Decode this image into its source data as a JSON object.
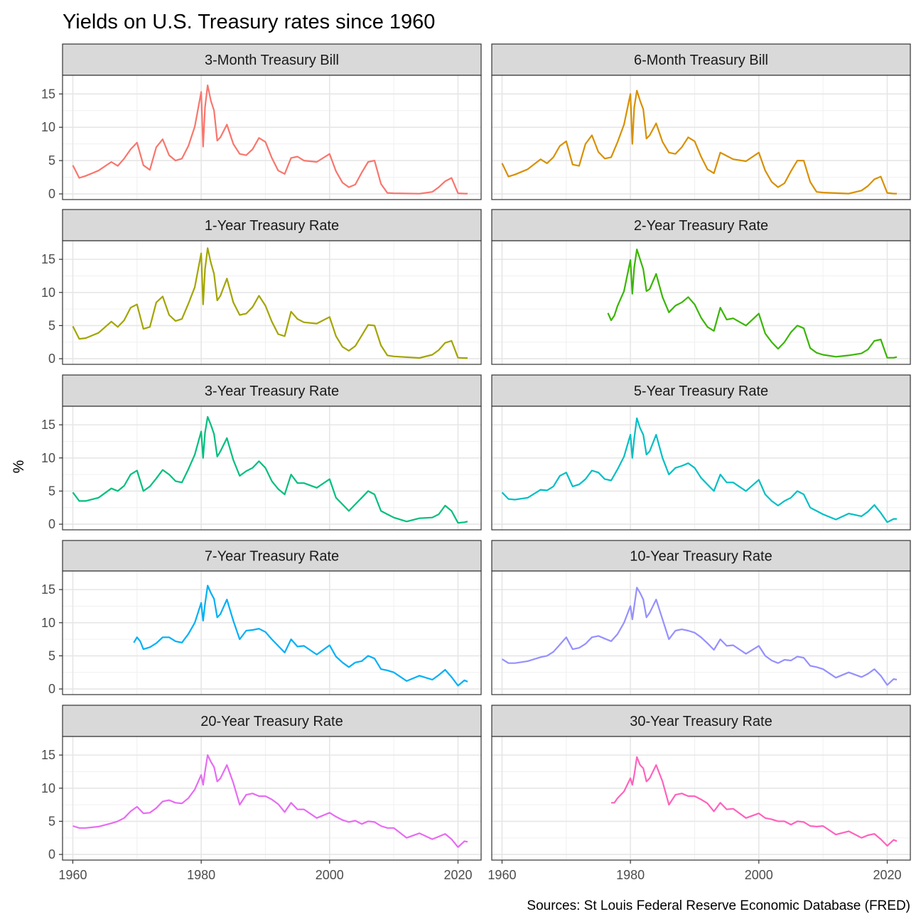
{
  "title": "Yields on U.S. Treasury rates since 1960",
  "caption": "Sources: St Louis Federal Reserve Economic Database (FRED)",
  "chart_data": {
    "type": "line",
    "layout": "faceted small multiples, 5 rows x 2 columns",
    "title": "Yields on U.S. Treasury rates since 1960",
    "xlabel": "",
    "ylabel": "%",
    "xlim": [
      1960,
      2022
    ],
    "ylim": [
      0,
      17
    ],
    "x_ticks": [
      1960,
      1980,
      2000,
      2020
    ],
    "y_ticks": [
      0,
      5,
      10,
      15
    ],
    "grid": true,
    "legend": "none",
    "caption": "Sources: St Louis Federal Reserve Economic Database (FRED)",
    "series": [
      {
        "name": "3-Month Treasury Bill",
        "color": "#F8766D",
        "x": [
          1960,
          1961,
          1962,
          1964,
          1966,
          1967,
          1968,
          1969,
          1970,
          1971,
          1972,
          1973,
          1974,
          1975,
          1976,
          1977,
          1978,
          1979,
          1980,
          1980.3,
          1980.6,
          1981,
          1981.5,
          1982,
          1982.5,
          1983,
          1984,
          1985,
          1986,
          1987,
          1988,
          1989,
          1990,
          1991,
          1992,
          1993,
          1994,
          1995,
          1996,
          1998,
          2000,
          2001,
          2002,
          2003,
          2004,
          2005,
          2006,
          2007,
          2008,
          2009,
          2010,
          2014,
          2016,
          2017,
          2018,
          2019,
          2020,
          2021,
          2021.5
        ],
        "y": [
          4.3,
          2.4,
          2.7,
          3.5,
          4.8,
          4.2,
          5.3,
          6.7,
          7.7,
          4.3,
          3.6,
          7.0,
          8.2,
          5.8,
          5.0,
          5.3,
          7.2,
          10.1,
          15.3,
          7.1,
          13.0,
          16.3,
          14.0,
          12.5,
          8.0,
          8.5,
          10.4,
          7.5,
          6.0,
          5.8,
          6.7,
          8.4,
          7.8,
          5.4,
          3.5,
          3.0,
          5.4,
          5.6,
          5.0,
          4.8,
          6.0,
          3.4,
          1.7,
          1.0,
          1.4,
          3.2,
          4.8,
          5.0,
          1.5,
          0.15,
          0.1,
          0.03,
          0.3,
          1.0,
          1.9,
          2.4,
          0.1,
          0.05,
          0.05
        ]
      },
      {
        "name": "6-Month Treasury Bill",
        "color": "#D89000",
        "x": [
          1960,
          1961,
          1962,
          1964,
          1966,
          1967,
          1968,
          1969,
          1970,
          1971,
          1972,
          1973,
          1974,
          1975,
          1976,
          1977,
          1978,
          1979,
          1980,
          1980.3,
          1980.6,
          1981,
          1981.5,
          1982,
          1982.5,
          1983,
          1984,
          1985,
          1986,
          1987,
          1988,
          1989,
          1990,
          1991,
          1992,
          1993,
          1994,
          1995,
          1996,
          1998,
          2000,
          2001,
          2002,
          2003,
          2004,
          2005,
          2006,
          2007,
          2008,
          2009,
          2010,
          2014,
          2016,
          2017,
          2018,
          2019,
          2020,
          2021,
          2021.5
        ],
        "y": [
          4.6,
          2.6,
          2.9,
          3.7,
          5.2,
          4.6,
          5.5,
          7.2,
          7.9,
          4.4,
          4.2,
          7.5,
          8.8,
          6.3,
          5.3,
          5.5,
          7.8,
          10.4,
          15.0,
          7.5,
          13.0,
          15.5,
          14.0,
          12.7,
          8.3,
          8.8,
          10.6,
          7.8,
          6.2,
          6.0,
          7.0,
          8.5,
          7.9,
          5.6,
          3.7,
          3.1,
          6.2,
          5.7,
          5.2,
          4.9,
          6.2,
          3.5,
          1.8,
          1.0,
          1.6,
          3.4,
          5.0,
          5.0,
          1.8,
          0.3,
          0.2,
          0.05,
          0.5,
          1.2,
          2.2,
          2.6,
          0.15,
          0.05,
          0.05
        ]
      },
      {
        "name": "1-Year Treasury Rate",
        "color": "#A3A500",
        "x": [
          1960,
          1961,
          1962,
          1964,
          1966,
          1967,
          1968,
          1969,
          1970,
          1971,
          1972,
          1973,
          1974,
          1975,
          1976,
          1977,
          1978,
          1979,
          1980,
          1980.3,
          1980.6,
          1981,
          1981.5,
          1982,
          1982.5,
          1983,
          1984,
          1985,
          1986,
          1987,
          1988,
          1989,
          1990,
          1991,
          1992,
          1993,
          1994,
          1995,
          1996,
          1998,
          2000,
          2001,
          2002,
          2003,
          2004,
          2005,
          2006,
          2007,
          2008,
          2009,
          2010,
          2014,
          2016,
          2017,
          2018,
          2019,
          2020,
          2021,
          2021.5
        ],
        "y": [
          4.9,
          3.0,
          3.1,
          3.9,
          5.6,
          4.8,
          5.8,
          7.7,
          8.2,
          4.5,
          4.8,
          8.5,
          9.4,
          6.6,
          5.7,
          6.0,
          8.3,
          10.8,
          15.9,
          8.2,
          13.5,
          16.7,
          14.5,
          12.8,
          8.8,
          9.5,
          12.1,
          8.5,
          6.6,
          6.8,
          7.8,
          9.5,
          8.0,
          5.6,
          3.7,
          3.4,
          7.1,
          6.0,
          5.5,
          5.3,
          6.3,
          3.4,
          1.8,
          1.2,
          1.9,
          3.5,
          5.1,
          5.0,
          2.0,
          0.5,
          0.35,
          0.12,
          0.6,
          1.3,
          2.4,
          2.7,
          0.15,
          0.1,
          0.1
        ]
      },
      {
        "name": "2-Year Treasury Rate",
        "color": "#39B600",
        "x": [
          1976.5,
          1977,
          1977.5,
          1978,
          1979,
          1980,
          1980.3,
          1980.6,
          1981,
          1981.5,
          1982,
          1982.5,
          1983,
          1984,
          1985,
          1986,
          1987,
          1988,
          1989,
          1990,
          1991,
          1992,
          1993,
          1994,
          1995,
          1996,
          1998,
          2000,
          2001,
          2002,
          2003,
          2004,
          2005,
          2006,
          2007,
          2008,
          2009,
          2010,
          2012,
          2014,
          2016,
          2017,
          2018,
          2019,
          2020,
          2021,
          2021.5
        ],
        "y": [
          6.9,
          5.8,
          6.5,
          8.0,
          10.2,
          14.9,
          9.8,
          13.8,
          16.5,
          15.0,
          13.5,
          10.2,
          10.5,
          12.8,
          9.3,
          7.0,
          8.0,
          8.5,
          9.3,
          8.2,
          6.2,
          4.8,
          4.2,
          7.7,
          5.9,
          6.1,
          5.0,
          6.8,
          3.8,
          2.5,
          1.5,
          2.5,
          4.0,
          5.0,
          4.6,
          1.6,
          0.9,
          0.6,
          0.3,
          0.5,
          0.8,
          1.4,
          2.7,
          2.9,
          0.15,
          0.15,
          0.25
        ]
      },
      {
        "name": "3-Year Treasury Rate",
        "color": "#00BF7D",
        "x": [
          1960,
          1961,
          1962,
          1964,
          1966,
          1967,
          1968,
          1969,
          1970,
          1971,
          1972,
          1973,
          1974,
          1975,
          1976,
          1977,
          1978,
          1979,
          1980,
          1980.3,
          1980.6,
          1981,
          1981.5,
          1982,
          1982.5,
          1983,
          1984,
          1985,
          1986,
          1987,
          1988,
          1989,
          1990,
          1991,
          1992,
          1993,
          1994,
          1995,
          1996,
          1998,
          2000,
          2001,
          2002,
          2003,
          2004,
          2005,
          2006,
          2007,
          2008,
          2009,
          2010,
          2012,
          2014,
          2016,
          2017,
          2018,
          2019,
          2020,
          2021,
          2021.5
        ],
        "y": [
          4.8,
          3.5,
          3.5,
          4.0,
          5.4,
          5.0,
          5.8,
          7.5,
          8.1,
          5.0,
          5.7,
          6.9,
          8.2,
          7.5,
          6.5,
          6.3,
          8.3,
          10.5,
          14.0,
          10.0,
          13.8,
          16.2,
          15.0,
          13.6,
          10.2,
          11.0,
          13.0,
          9.7,
          7.3,
          8.0,
          8.5,
          9.5,
          8.5,
          6.5,
          5.3,
          4.5,
          7.5,
          6.2,
          6.2,
          5.5,
          6.8,
          4.0,
          3.0,
          2.0,
          3.0,
          4.0,
          5.0,
          4.5,
          2.0,
          1.5,
          1.0,
          0.4,
          0.9,
          1.0,
          1.5,
          2.8,
          2.0,
          0.2,
          0.3,
          0.4
        ]
      },
      {
        "name": "5-Year Treasury Rate",
        "color": "#00BFC4",
        "x": [
          1960,
          1961,
          1962,
          1964,
          1966,
          1967,
          1968,
          1969,
          1970,
          1971,
          1972,
          1973,
          1974,
          1975,
          1976,
          1977,
          1978,
          1979,
          1980,
          1980.3,
          1980.6,
          1981,
          1981.5,
          1982,
          1982.5,
          1983,
          1984,
          1985,
          1986,
          1987,
          1988,
          1989,
          1990,
          1991,
          1992,
          1993,
          1994,
          1995,
          1996,
          1998,
          2000,
          2001,
          2002,
          2003,
          2004,
          2005,
          2006,
          2007,
          2008,
          2009,
          2010,
          2012,
          2014,
          2016,
          2017,
          2018,
          2019,
          2020,
          2021,
          2021.5
        ],
        "y": [
          4.8,
          3.8,
          3.7,
          4.0,
          5.2,
          5.1,
          5.7,
          7.3,
          7.8,
          5.7,
          6.0,
          6.8,
          8.1,
          7.8,
          6.8,
          6.6,
          8.3,
          10.2,
          13.5,
          10.0,
          13.0,
          16.0,
          14.5,
          13.5,
          10.5,
          11.0,
          13.5,
          10.0,
          7.5,
          8.5,
          8.8,
          9.2,
          8.5,
          7.0,
          6.0,
          5.0,
          7.5,
          6.3,
          6.3,
          5.0,
          6.7,
          4.5,
          3.5,
          2.8,
          3.5,
          4.0,
          5.0,
          4.5,
          2.5,
          2.0,
          1.5,
          0.7,
          1.6,
          1.2,
          1.9,
          2.9,
          1.7,
          0.3,
          0.8,
          0.8
        ]
      },
      {
        "name": "7-Year Treasury Rate",
        "color": "#00B0F6",
        "x": [
          1969.5,
          1970,
          1970.5,
          1971,
          1972,
          1973,
          1974,
          1975,
          1976,
          1977,
          1978,
          1979,
          1980,
          1980.3,
          1980.6,
          1981,
          1981.5,
          1982,
          1982.5,
          1983,
          1984,
          1985,
          1986,
          1987,
          1988,
          1989,
          1990,
          1991,
          1992,
          1993,
          1994,
          1995,
          1996,
          1998,
          2000,
          2001,
          2002,
          2003,
          2004,
          2005,
          2006,
          2007,
          2008,
          2009,
          2010,
          2012,
          2014,
          2016,
          2017,
          2018,
          2019,
          2020,
          2021,
          2021.5
        ],
        "y": [
          7.0,
          7.8,
          7.2,
          6.0,
          6.3,
          6.9,
          7.8,
          7.8,
          7.2,
          7.0,
          8.3,
          10.0,
          13.0,
          10.3,
          12.8,
          15.6,
          14.5,
          13.6,
          10.8,
          11.3,
          13.5,
          10.3,
          7.5,
          8.8,
          8.9,
          9.1,
          8.6,
          7.5,
          6.5,
          5.5,
          7.5,
          6.4,
          6.5,
          5.2,
          6.6,
          4.9,
          4.0,
          3.3,
          4.0,
          4.2,
          5.0,
          4.6,
          3.0,
          2.8,
          2.5,
          1.2,
          2.0,
          1.4,
          2.1,
          2.9,
          1.8,
          0.5,
          1.3,
          1.1
        ]
      },
      {
        "name": "10-Year Treasury Rate",
        "color": "#9590FF",
        "x": [
          1960,
          1961,
          1962,
          1964,
          1966,
          1967,
          1968,
          1969,
          1970,
          1971,
          1972,
          1973,
          1974,
          1975,
          1976,
          1977,
          1978,
          1979,
          1980,
          1980.3,
          1980.6,
          1981,
          1981.5,
          1982,
          1982.5,
          1983,
          1984,
          1985,
          1986,
          1987,
          1988,
          1989,
          1990,
          1991,
          1992,
          1993,
          1994,
          1995,
          1996,
          1998,
          2000,
          2001,
          2002,
          2003,
          2004,
          2005,
          2006,
          2007,
          2008,
          2009,
          2010,
          2012,
          2014,
          2016,
          2017,
          2018,
          2019,
          2020,
          2021,
          2021.5
        ],
        "y": [
          4.5,
          3.9,
          3.9,
          4.2,
          4.8,
          5.0,
          5.6,
          6.7,
          7.8,
          6.0,
          6.2,
          6.8,
          7.8,
          8.0,
          7.6,
          7.2,
          8.3,
          10.0,
          12.5,
          10.5,
          12.5,
          15.3,
          14.5,
          13.5,
          10.8,
          11.5,
          13.5,
          10.5,
          7.5,
          8.8,
          9.0,
          8.8,
          8.5,
          7.8,
          6.9,
          5.9,
          7.5,
          6.5,
          6.6,
          5.3,
          6.5,
          5.0,
          4.3,
          3.9,
          4.4,
          4.3,
          4.9,
          4.7,
          3.5,
          3.3,
          3.0,
          1.7,
          2.5,
          1.8,
          2.3,
          3.0,
          2.0,
          0.6,
          1.5,
          1.4
        ]
      },
      {
        "name": "20-Year Treasury Rate",
        "color": "#E76BF3",
        "x": [
          1960,
          1961,
          1962,
          1964,
          1966,
          1967,
          1968,
          1969,
          1970,
          1971,
          1972,
          1973,
          1974,
          1975,
          1976,
          1977,
          1978,
          1979,
          1980,
          1980.3,
          1980.6,
          1981,
          1981.5,
          1982,
          1982.5,
          1983,
          1984,
          1985,
          1986,
          1987,
          1988,
          1989,
          1990,
          1991,
          1992,
          1993,
          1994,
          1995,
          1996,
          1998,
          2000,
          2001,
          2002,
          2003,
          2004,
          2005,
          2006,
          2007,
          2008,
          2009,
          2010,
          2012,
          2014,
          2016,
          2017,
          2018,
          2019,
          2020,
          2021,
          2021.5
        ],
        "y": [
          4.3,
          4.0,
          4.0,
          4.2,
          4.7,
          5.0,
          5.5,
          6.5,
          7.2,
          6.2,
          6.3,
          7.0,
          8.0,
          8.2,
          7.8,
          7.7,
          8.5,
          9.8,
          12.0,
          10.5,
          12.5,
          15.0,
          14.0,
          13.2,
          11.0,
          11.5,
          13.5,
          10.8,
          7.5,
          9.0,
          9.2,
          8.8,
          8.8,
          8.3,
          7.6,
          6.4,
          7.8,
          6.8,
          6.8,
          5.5,
          6.3,
          5.7,
          5.2,
          4.9,
          5.1,
          4.6,
          5.0,
          4.9,
          4.3,
          4.0,
          4.0,
          2.5,
          3.2,
          2.3,
          2.7,
          3.1,
          2.3,
          1.1,
          2.0,
          1.9
        ]
      },
      {
        "name": "30-Year Treasury Rate",
        "color": "#FF62BC",
        "x": [
          1977,
          1977.5,
          1978,
          1979,
          1980,
          1980.3,
          1980.6,
          1981,
          1981.5,
          1982,
          1982.5,
          1983,
          1984,
          1985,
          1986,
          1987,
          1988,
          1989,
          1990,
          1991,
          1992,
          1993,
          1994,
          1995,
          1996,
          1998,
          2000,
          2001,
          2002,
          2003,
          2004,
          2005,
          2006,
          2007,
          2008,
          2009,
          2010,
          2012,
          2014,
          2016,
          2017,
          2018,
          2019,
          2020,
          2021,
          2021.5
        ],
        "y": [
          7.8,
          7.8,
          8.5,
          9.5,
          11.5,
          10.5,
          12.0,
          14.7,
          13.5,
          13.0,
          11.0,
          11.5,
          13.5,
          11.0,
          7.5,
          9.0,
          9.2,
          8.8,
          8.8,
          8.3,
          7.7,
          6.5,
          7.8,
          6.8,
          6.9,
          5.5,
          6.2,
          5.5,
          5.3,
          5.0,
          5.0,
          4.5,
          5.0,
          4.9,
          4.3,
          4.2,
          4.3,
          3.0,
          3.5,
          2.5,
          2.9,
          3.1,
          2.3,
          1.3,
          2.2,
          2.0
        ]
      }
    ]
  }
}
